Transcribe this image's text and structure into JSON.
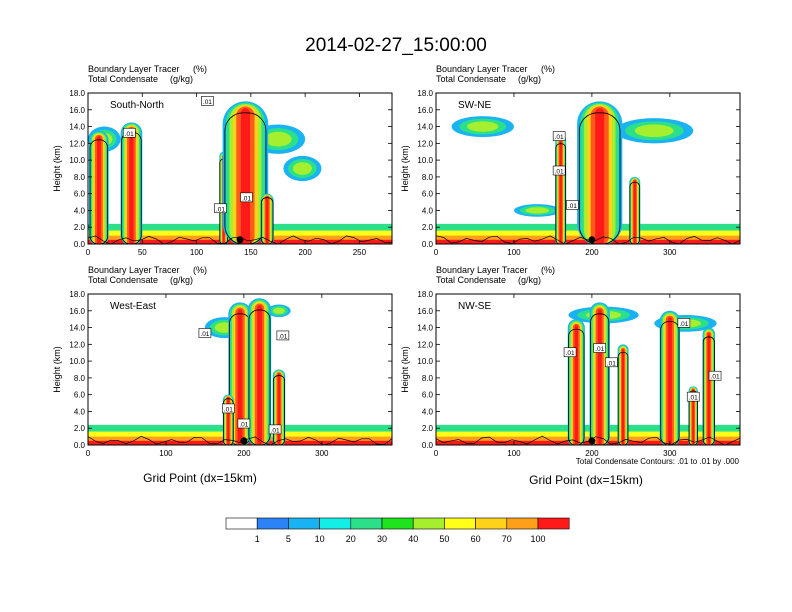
{
  "title": "2014-02-27_15:00:00",
  "fill_label": "Boundary Layer Tracer",
  "fill_unit": "(%)",
  "contour_label": "Total Condensate",
  "contour_unit": "(g/kg)",
  "ylabel": "Height (km)",
  "xlabel": "Grid Point (dx=15km)",
  "contour_info": "Total Condensate Contours: .01 to .01 by .000",
  "contour_tag": ".01",
  "colors": {
    "levels": [
      "#ffffff",
      "#2b83f7",
      "#19b3f3",
      "#13efe6",
      "#2ce08a",
      "#1fe31c",
      "#a6ef2e",
      "#ffff1a",
      "#ffd21a",
      "#ff9f1a",
      "#ff5a1a",
      "#ff1a1a"
    ]
  },
  "colorbar": {
    "labels": [
      "1",
      "5",
      "10",
      "20",
      "30",
      "40",
      "50",
      "60",
      "70",
      "100"
    ]
  },
  "chart_data": [
    {
      "type": "heatmap",
      "name": "South-North",
      "xlim": [
        0,
        280
      ],
      "ylim": [
        0,
        18
      ],
      "xticks": [
        "0",
        "50",
        "100",
        "150",
        "200",
        "250"
      ],
      "yticks": [
        "0.0",
        "2.0",
        "4.0",
        "6.0",
        "8.0",
        "10.0",
        "12.0",
        "14.0",
        "16.0",
        "18.0"
      ],
      "marker_x": 140,
      "plumes": [
        {
          "x": 10,
          "top": 13.5,
          "w": 18
        },
        {
          "x": 40,
          "top": 14.5,
          "w": 20
        },
        {
          "x": 125,
          "top": 11,
          "w": 8
        },
        {
          "x": 145,
          "top": 17,
          "w": 42
        },
        {
          "x": 165,
          "top": 6,
          "w": 12
        }
      ],
      "anvils": [
        {
          "x1": 0,
          "x2": 30,
          "y": 12.5,
          "h": 3
        },
        {
          "x1": 150,
          "x2": 200,
          "y": 12.5,
          "h": 3.5
        },
        {
          "x1": 180,
          "x2": 215,
          "y": 9,
          "h": 3
        }
      ],
      "contour_tags": [
        {
          "x": 38,
          "y": 13.2
        },
        {
          "x": 110,
          "y": 17
        },
        {
          "x": 122,
          "y": 4.2
        },
        {
          "x": 146,
          "y": 5.5
        }
      ]
    },
    {
      "type": "heatmap",
      "name": "SW-NE",
      "xlim": [
        0,
        390
      ],
      "ylim": [
        0,
        18
      ],
      "xticks": [
        "0",
        "100",
        "200",
        "300"
      ],
      "yticks": [
        "0.0",
        "2.0",
        "4.0",
        "6.0",
        "8.0",
        "10.0",
        "12.0",
        "14.0",
        "16.0",
        "18.0"
      ],
      "marker_x": 200,
      "plumes": [
        {
          "x": 160,
          "top": 13,
          "w": 14
        },
        {
          "x": 210,
          "top": 17,
          "w": 58
        },
        {
          "x": 255,
          "top": 8,
          "w": 14
        }
      ],
      "anvils": [
        {
          "x1": 20,
          "x2": 100,
          "y": 14,
          "h": 2.5
        },
        {
          "x1": 230,
          "x2": 330,
          "y": 13.5,
          "h": 3
        },
        {
          "x1": 100,
          "x2": 160,
          "y": 4,
          "h": 1.5
        }
      ],
      "contour_tags": [
        {
          "x": 158,
          "y": 12.8
        },
        {
          "x": 158,
          "y": 8.7
        },
        {
          "x": 175,
          "y": 4.6
        }
      ]
    },
    {
      "type": "heatmap",
      "name": "West-East",
      "xlim": [
        0,
        390
      ],
      "ylim": [
        0,
        18
      ],
      "xticks": [
        "0",
        "100",
        "200",
        "300"
      ],
      "yticks": [
        "0.0",
        "2.0",
        "4.0",
        "6.0",
        "8.0",
        "10.0",
        "12.0",
        "14.0",
        "16.0",
        "18.0"
      ],
      "marker_x": 200,
      "plumes": [
        {
          "x": 195,
          "top": 17,
          "w": 30
        },
        {
          "x": 220,
          "top": 17.5,
          "w": 30
        },
        {
          "x": 245,
          "top": 9,
          "w": 16
        },
        {
          "x": 180,
          "top": 6,
          "w": 14
        }
      ],
      "anvils": [
        {
          "x1": 150,
          "x2": 200,
          "y": 14,
          "h": 2.5
        },
        {
          "x1": 230,
          "x2": 260,
          "y": 16,
          "h": 1.5
        }
      ],
      "contour_tags": [
        {
          "x": 150,
          "y": 13.3
        },
        {
          "x": 250,
          "y": 13
        },
        {
          "x": 180,
          "y": 4.3
        },
        {
          "x": 200,
          "y": 2.5
        },
        {
          "x": 240,
          "y": 1.8
        }
      ]
    },
    {
      "type": "heatmap",
      "name": "NW-SE",
      "xlim": [
        0,
        390
      ],
      "ylim": [
        0,
        18
      ],
      "xticks": [
        "0",
        "100",
        "200",
        "300"
      ],
      "yticks": [
        "0.0",
        "2.0",
        "4.0",
        "6.0",
        "8.0",
        "10.0",
        "12.0",
        "14.0",
        "16.0",
        "18.0"
      ],
      "marker_x": 200,
      "plumes": [
        {
          "x": 180,
          "top": 15,
          "w": 22
        },
        {
          "x": 210,
          "top": 17,
          "w": 26
        },
        {
          "x": 240,
          "top": 12,
          "w": 14
        },
        {
          "x": 300,
          "top": 16,
          "w": 26
        },
        {
          "x": 350,
          "top": 14,
          "w": 16
        },
        {
          "x": 330,
          "top": 7,
          "w": 12
        }
      ],
      "anvils": [
        {
          "x1": 170,
          "x2": 260,
          "y": 15.5,
          "h": 2
        },
        {
          "x1": 280,
          "x2": 360,
          "y": 14.5,
          "h": 2
        }
      ],
      "contour_tags": [
        {
          "x": 172,
          "y": 11
        },
        {
          "x": 210,
          "y": 11.5
        },
        {
          "x": 225,
          "y": 9.8
        },
        {
          "x": 318,
          "y": 14.5
        },
        {
          "x": 358,
          "y": 8.2
        },
        {
          "x": 330,
          "y": 5.7
        }
      ]
    }
  ]
}
